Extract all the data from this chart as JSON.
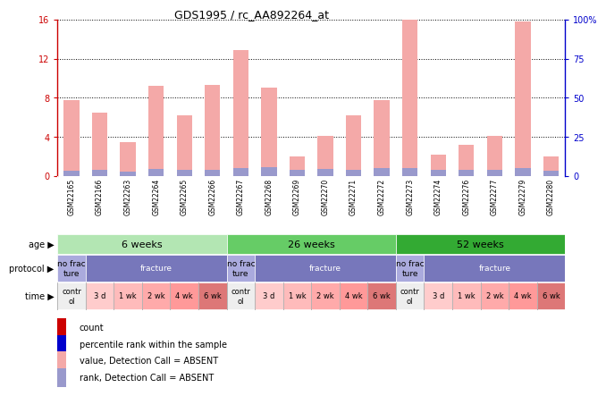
{
  "title": "GDS1995 / rc_AA892264_at",
  "samples": [
    "GSM22165",
    "GSM22166",
    "GSM22263",
    "GSM22264",
    "GSM22265",
    "GSM22266",
    "GSM22267",
    "GSM22268",
    "GSM22269",
    "GSM22270",
    "GSM22271",
    "GSM22272",
    "GSM22273",
    "GSM22274",
    "GSM22276",
    "GSM22277",
    "GSM22279",
    "GSM22280"
  ],
  "bar_values": [
    7.8,
    6.5,
    3.5,
    9.2,
    6.2,
    9.3,
    12.9,
    9.0,
    2.0,
    4.1,
    6.2,
    7.8,
    16.0,
    2.2,
    3.2,
    4.1,
    15.8,
    2.0
  ],
  "rank_values": [
    0.55,
    0.65,
    0.45,
    0.75,
    0.65,
    0.65,
    0.85,
    0.9,
    0.65,
    0.75,
    0.65,
    0.8,
    0.8,
    0.65,
    0.6,
    0.65,
    0.85,
    0.55
  ],
  "bar_color": "#f4a9a8",
  "rank_color": "#9999cc",
  "left_ylim": [
    0,
    16
  ],
  "right_ylim": [
    0,
    100
  ],
  "left_yticks": [
    0,
    4,
    8,
    12,
    16
  ],
  "right_yticks": [
    0,
    25,
    50,
    75,
    100
  ],
  "left_ytick_labels": [
    "0",
    "4",
    "8",
    "12",
    "16"
  ],
  "right_ytick_labels": [
    "0",
    "25",
    "50",
    "75",
    "100%"
  ],
  "left_axis_color": "#cc0000",
  "right_axis_color": "#0000cc",
  "xlabel_bg": "#cccccc",
  "age_groups": [
    {
      "label": "6 weeks",
      "start": 0,
      "end": 6,
      "color": "#b3e6b3"
    },
    {
      "label": "26 weeks",
      "start": 6,
      "end": 12,
      "color": "#66cc66"
    },
    {
      "label": "52 weeks",
      "start": 12,
      "end": 18,
      "color": "#33aa33"
    }
  ],
  "protocol_groups": [
    {
      "label": "no frac\nture",
      "start": 0,
      "end": 1,
      "color": "#aaaadd",
      "text_color": "#000000"
    },
    {
      "label": "fracture",
      "start": 1,
      "end": 6,
      "color": "#7777bb",
      "text_color": "#ffffff"
    },
    {
      "label": "no frac\nture",
      "start": 6,
      "end": 7,
      "color": "#aaaadd",
      "text_color": "#000000"
    },
    {
      "label": "fracture",
      "start": 7,
      "end": 12,
      "color": "#7777bb",
      "text_color": "#ffffff"
    },
    {
      "label": "no frac\nture",
      "start": 12,
      "end": 13,
      "color": "#aaaadd",
      "text_color": "#000000"
    },
    {
      "label": "fracture",
      "start": 13,
      "end": 18,
      "color": "#7777bb",
      "text_color": "#ffffff"
    }
  ],
  "time_groups": [
    {
      "label": "contr\nol",
      "start": 0,
      "end": 1,
      "color": "#eeeeee"
    },
    {
      "label": "3 d",
      "start": 1,
      "end": 2,
      "color": "#ffcccc"
    },
    {
      "label": "1 wk",
      "start": 2,
      "end": 3,
      "color": "#ffbbbb"
    },
    {
      "label": "2 wk",
      "start": 3,
      "end": 4,
      "color": "#ffaaaa"
    },
    {
      "label": "4 wk",
      "start": 4,
      "end": 5,
      "color": "#ff9999"
    },
    {
      "label": "6 wk",
      "start": 5,
      "end": 6,
      "color": "#dd7777"
    },
    {
      "label": "contr\nol",
      "start": 6,
      "end": 7,
      "color": "#eeeeee"
    },
    {
      "label": "3 d",
      "start": 7,
      "end": 8,
      "color": "#ffcccc"
    },
    {
      "label": "1 wk",
      "start": 8,
      "end": 9,
      "color": "#ffbbbb"
    },
    {
      "label": "2 wk",
      "start": 9,
      "end": 10,
      "color": "#ffaaaa"
    },
    {
      "label": "4 wk",
      "start": 10,
      "end": 11,
      "color": "#ff9999"
    },
    {
      "label": "6 wk",
      "start": 11,
      "end": 12,
      "color": "#dd7777"
    },
    {
      "label": "contr\nol",
      "start": 12,
      "end": 13,
      "color": "#eeeeee"
    },
    {
      "label": "3 d",
      "start": 13,
      "end": 14,
      "color": "#ffcccc"
    },
    {
      "label": "1 wk",
      "start": 14,
      "end": 15,
      "color": "#ffbbbb"
    },
    {
      "label": "2 wk",
      "start": 15,
      "end": 16,
      "color": "#ffaaaa"
    },
    {
      "label": "4 wk",
      "start": 16,
      "end": 17,
      "color": "#ff9999"
    },
    {
      "label": "6 wk",
      "start": 17,
      "end": 18,
      "color": "#dd7777"
    }
  ],
  "legend_items": [
    {
      "color": "#cc0000",
      "label": "count"
    },
    {
      "color": "#0000cc",
      "label": "percentile rank within the sample"
    },
    {
      "color": "#f4a9a8",
      "label": "value, Detection Call = ABSENT"
    },
    {
      "color": "#9999cc",
      "label": "rank, Detection Call = ABSENT"
    }
  ],
  "row_labels": [
    "age",
    "protocol",
    "time"
  ],
  "bg_color": "#ffffff"
}
